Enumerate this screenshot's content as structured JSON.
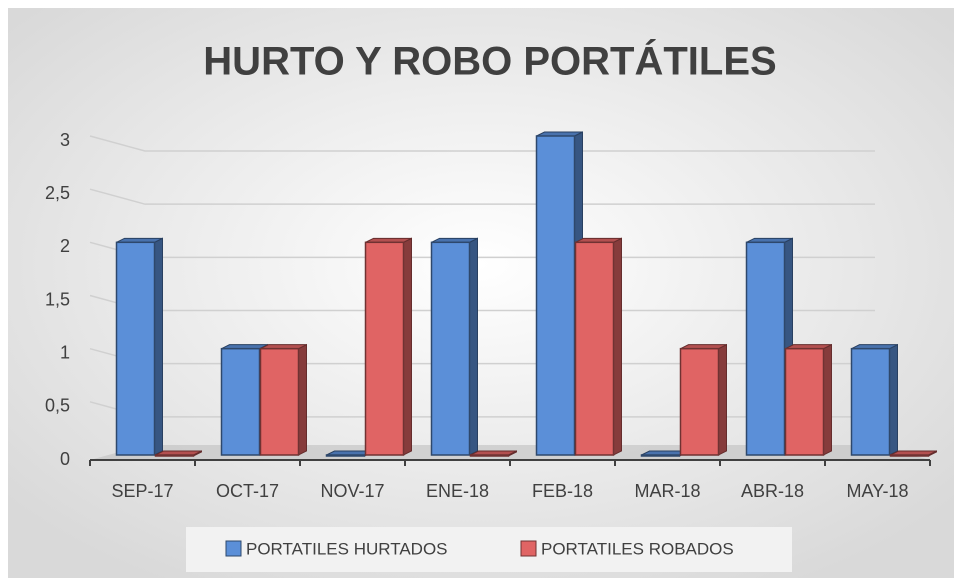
{
  "chart_data": {
    "type": "bar3d",
    "title": "HURTO Y ROBO PORTÁTILES",
    "categories": [
      "SEP-17",
      "OCT-17",
      "NOV-17",
      "ENE-18",
      "FEB-18",
      "MAR-18",
      "ABR-18",
      "MAY-18"
    ],
    "series": [
      {
        "name": "PORTATILES HURTADOS",
        "color": "#5b8fd8",
        "values": [
          2,
          1,
          0,
          2,
          3,
          0,
          2,
          1
        ]
      },
      {
        "name": "PORTATILES ROBADOS",
        "color": "#e06464",
        "values": [
          0,
          1,
          2,
          0,
          2,
          1,
          1,
          0
        ]
      }
    ],
    "ylim": [
      0,
      3
    ],
    "yticks": [
      0,
      {
        "value": 0.5,
        "label": "0,5"
      },
      1,
      {
        "value": 1.5,
        "label": "1,5"
      },
      2,
      {
        "value": 2.5,
        "label": "2,5"
      },
      3
    ],
    "grid": true,
    "legend": "bottom"
  }
}
